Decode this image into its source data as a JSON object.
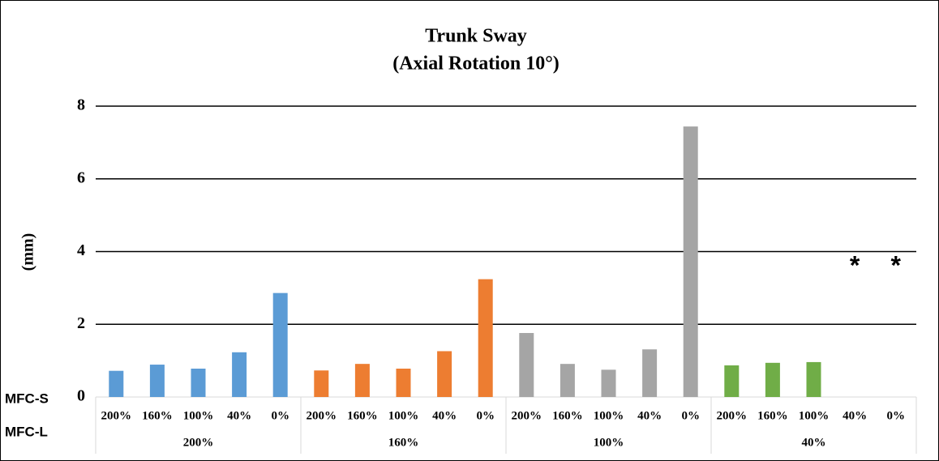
{
  "chart_data": {
    "type": "bar",
    "title": [
      "Trunk Sway",
      "(Axial Rotation 10°)"
    ],
    "y_label": "(mm)",
    "row_labels": [
      "MFC-S",
      "MFC-L"
    ],
    "categories": [
      "200%",
      "160%",
      "100%",
      "40%",
      "0%"
    ],
    "series": [
      {
        "name": "200%",
        "color": "#5b9bd5",
        "values": [
          0.72,
          0.89,
          0.78,
          1.23,
          2.86
        ]
      },
      {
        "name": "160%",
        "color": "#ed7d31",
        "values": [
          0.73,
          0.91,
          0.78,
          1.26,
          3.24
        ]
      },
      {
        "name": "100%",
        "color": "#a5a5a5",
        "values": [
          1.76,
          0.91,
          0.75,
          1.31,
          7.44
        ]
      },
      {
        "name": "40%",
        "color": "#70ad47",
        "values": [
          0.87,
          0.94,
          0.96,
          null,
          null
        ]
      }
    ],
    "annotations": [
      "*",
      "*"
    ],
    "ylim": [
      0,
      8
    ],
    "yticks": [
      0,
      2,
      4,
      6,
      8
    ],
    "grid": true
  }
}
